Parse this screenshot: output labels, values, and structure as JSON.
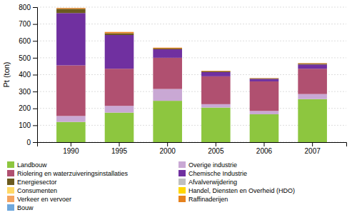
{
  "chart_data": {
    "type": "bar",
    "stacked": true,
    "categories": [
      "1990",
      "1995",
      "2000",
      "2005",
      "2006",
      "2007"
    ],
    "series": [
      {
        "name": "Landbouw",
        "color": "#8dc63f",
        "values": [
          120,
          175,
          245,
          205,
          165,
          255
        ]
      },
      {
        "name": "Overige industrie",
        "color": "#c9a8d4",
        "values": [
          35,
          40,
          70,
          20,
          20,
          30
        ]
      },
      {
        "name": "Riolering en waterzuiveringsinstallaties",
        "color": "#b05070",
        "values": [
          300,
          220,
          185,
          165,
          175,
          150
        ]
      },
      {
        "name": "Chemische Industrie",
        "color": "#7030a0",
        "values": [
          310,
          200,
          50,
          25,
          15,
          25
        ]
      },
      {
        "name": "Energiesector",
        "color": "#6b5a1e",
        "values": [
          25,
          10,
          5,
          5,
          3,
          5
        ]
      },
      {
        "name": "Afvalverwijdering",
        "color": "#bfbfbf",
        "values": [
          0,
          0,
          0,
          0,
          0,
          0
        ]
      },
      {
        "name": "Consumenten",
        "color": "#ffd966",
        "values": [
          0,
          0,
          0,
          0,
          0,
          0
        ]
      },
      {
        "name": "Handel, Diensten en Overheid (HDO)",
        "color": "#ffd700",
        "values": [
          0,
          0,
          0,
          0,
          0,
          0
        ]
      },
      {
        "name": "Verkeer en vervoer",
        "color": "#f4a460",
        "values": [
          0,
          0,
          0,
          0,
          0,
          0
        ]
      },
      {
        "name": "Raffinaderijen",
        "color": "#e6821e",
        "values": [
          5,
          8,
          5,
          3,
          2,
          3
        ]
      },
      {
        "name": "Bouw",
        "color": "#6fa8dc",
        "values": [
          0,
          0,
          0,
          0,
          0,
          0
        ]
      }
    ],
    "ylabel": "Pt (ton)",
    "ylim": [
      0,
      800
    ],
    "yticks": [
      0,
      100,
      200,
      300,
      400,
      500,
      600,
      700,
      800
    ],
    "grid": true,
    "legend": "bottom"
  }
}
